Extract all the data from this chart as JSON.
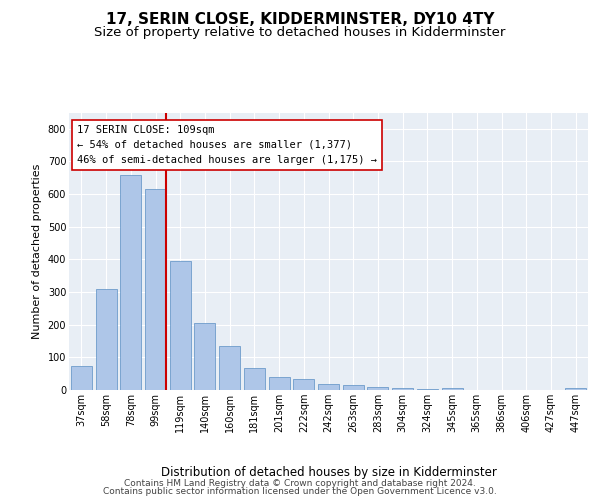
{
  "title": "17, SERIN CLOSE, KIDDERMINSTER, DY10 4TY",
  "subtitle": "Size of property relative to detached houses in Kidderminster",
  "xlabel": "Distribution of detached houses by size in Kidderminster",
  "ylabel": "Number of detached properties",
  "categories": [
    "37sqm",
    "58sqm",
    "78sqm",
    "99sqm",
    "119sqm",
    "140sqm",
    "160sqm",
    "181sqm",
    "201sqm",
    "222sqm",
    "242sqm",
    "263sqm",
    "283sqm",
    "304sqm",
    "324sqm",
    "345sqm",
    "365sqm",
    "386sqm",
    "406sqm",
    "427sqm",
    "447sqm"
  ],
  "values": [
    75,
    310,
    660,
    615,
    395,
    205,
    135,
    68,
    40,
    33,
    18,
    14,
    10,
    5,
    2,
    7,
    0,
    0,
    0,
    0,
    7
  ],
  "bar_color": "#aec6e8",
  "bar_edge_color": "#5a8fc4",
  "vline_x_index": 3,
  "vline_color": "#cc0000",
  "annotation_text_line1": "17 SERIN CLOSE: 109sqm",
  "annotation_text_line2": "← 54% of detached houses are smaller (1,377)",
  "annotation_text_line3": "46% of semi-detached houses are larger (1,175) →",
  "annotation_box_color": "#ffffff",
  "annotation_box_edge": "#cc0000",
  "ylim": [
    0,
    850
  ],
  "yticks": [
    0,
    100,
    200,
    300,
    400,
    500,
    600,
    700,
    800
  ],
  "footer_line1": "Contains HM Land Registry data © Crown copyright and database right 2024.",
  "footer_line2": "Contains public sector information licensed under the Open Government Licence v3.0.",
  "bg_color": "#ffffff",
  "plot_bg_color": "#e8eef5",
  "grid_color": "#ffffff",
  "title_fontsize": 11,
  "subtitle_fontsize": 9.5,
  "xlabel_fontsize": 8.5,
  "ylabel_fontsize": 8,
  "tick_fontsize": 7,
  "annotation_fontsize": 7.5,
  "footer_fontsize": 6.5
}
